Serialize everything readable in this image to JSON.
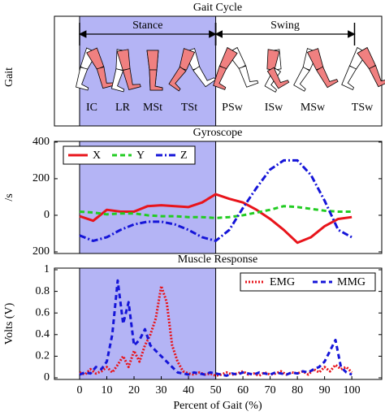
{
  "gait": {
    "title": "Gait Cycle",
    "ylabel": "Gait",
    "phases": [
      {
        "name": "Stance",
        "range": [
          0,
          50
        ]
      },
      {
        "name": "Swing",
        "range": [
          50,
          101
        ]
      }
    ],
    "events": [
      "IC",
      "LR",
      "MSt",
      "TSt",
      "PSw",
      "ISw",
      "MSw",
      "TSw"
    ]
  },
  "xlabel": "Percent of Gait (%)",
  "chart_data": [
    {
      "type": "line",
      "title": "Gyroscope",
      "ylabel": "/s",
      "xlim": [
        -9.25,
        111
      ],
      "ylim": [
        -209,
        404
      ],
      "yticks": [
        400,
        200,
        0,
        {
          "value": -200,
          "label": "200"
        }
      ],
      "x": [
        0,
        5,
        10,
        15,
        20,
        25,
        30,
        35,
        40,
        45,
        50,
        55,
        60,
        65,
        70,
        75,
        80,
        85,
        90,
        95,
        100
      ],
      "legend": "upper left",
      "series": [
        {
          "name": "X",
          "color": "#e8141b",
          "style": "solid",
          "values": [
            -5,
            -30,
            30,
            20,
            20,
            50,
            55,
            50,
            45,
            70,
            115,
            90,
            70,
            30,
            -20,
            -80,
            -150,
            -120,
            -60,
            -20,
            -10
          ]
        },
        {
          "name": "Y",
          "color": "#22cc22",
          "style": "dashed",
          "values": [
            20,
            15,
            5,
            10,
            10,
            0,
            -5,
            -5,
            -10,
            -10,
            -15,
            -10,
            0,
            15,
            30,
            50,
            45,
            35,
            25,
            20,
            20
          ]
        },
        {
          "name": "Z",
          "color": "#1515d8",
          "style": "dashdot",
          "values": [
            -110,
            -140,
            -120,
            -80,
            -50,
            -35,
            -35,
            -50,
            -80,
            -120,
            -140,
            -80,
            40,
            150,
            250,
            300,
            300,
            220,
            80,
            -80,
            -120
          ]
        }
      ]
    },
    {
      "type": "line",
      "title": "Muscle Response",
      "ylabel": "Volts (V)",
      "xlim": [
        -9.25,
        111
      ],
      "ylim": [
        -0.015,
        1.015
      ],
      "xticks": [
        0,
        10,
        20,
        30,
        40,
        50,
        60,
        70,
        80,
        90,
        100
      ],
      "yticks": [
        0,
        0.2,
        0.4,
        0.6,
        0.8,
        1
      ],
      "x": [
        0,
        2,
        4,
        6,
        8,
        10,
        12,
        14,
        16,
        18,
        20,
        22,
        24,
        26,
        28,
        30,
        32,
        34,
        36,
        38,
        40,
        42,
        44,
        46,
        48,
        50,
        52,
        54,
        56,
        58,
        60,
        62,
        64,
        66,
        68,
        70,
        72,
        74,
        76,
        78,
        80,
        82,
        84,
        86,
        88,
        90,
        92,
        94,
        96,
        98,
        100
      ],
      "legend": "upper right",
      "series": [
        {
          "name": "EMG",
          "color": "#e8141b",
          "style": "dotted",
          "values": [
            0.05,
            0.03,
            0.08,
            0.04,
            0.06,
            0.1,
            0.05,
            0.12,
            0.2,
            0.1,
            0.25,
            0.15,
            0.3,
            0.4,
            0.55,
            0.85,
            0.7,
            0.3,
            0.15,
            0.06,
            0.04,
            0.03,
            0.05,
            0.03,
            0.04,
            0.02,
            0.03,
            0.05,
            0.03,
            0.04,
            0.06,
            0.03,
            0.04,
            0.02,
            0.05,
            0.03,
            0.04,
            0.06,
            0.03,
            0.05,
            0.04,
            0.06,
            0.03,
            0.08,
            0.05,
            0.1,
            0.06,
            0.12,
            0.08,
            0.1,
            0.05
          ]
        },
        {
          "name": "MMG",
          "color": "#1515d8",
          "style": "dashed",
          "values": [
            0.03,
            0.05,
            0.04,
            0.1,
            0.08,
            0.15,
            0.4,
            0.9,
            0.5,
            0.7,
            0.3,
            0.35,
            0.45,
            0.3,
            0.25,
            0.2,
            0.15,
            0.1,
            0.05,
            0.04,
            0.03,
            0.05,
            0.04,
            0.03,
            0.05,
            0.04,
            0.03,
            0.02,
            0.04,
            0.03,
            0.05,
            0.04,
            0.03,
            0.05,
            0.04,
            0.03,
            0.05,
            0.04,
            0.03,
            0.05,
            0.04,
            0.06,
            0.05,
            0.08,
            0.1,
            0.15,
            0.25,
            0.35,
            0.1,
            0.05,
            0.03
          ]
        }
      ]
    }
  ]
}
